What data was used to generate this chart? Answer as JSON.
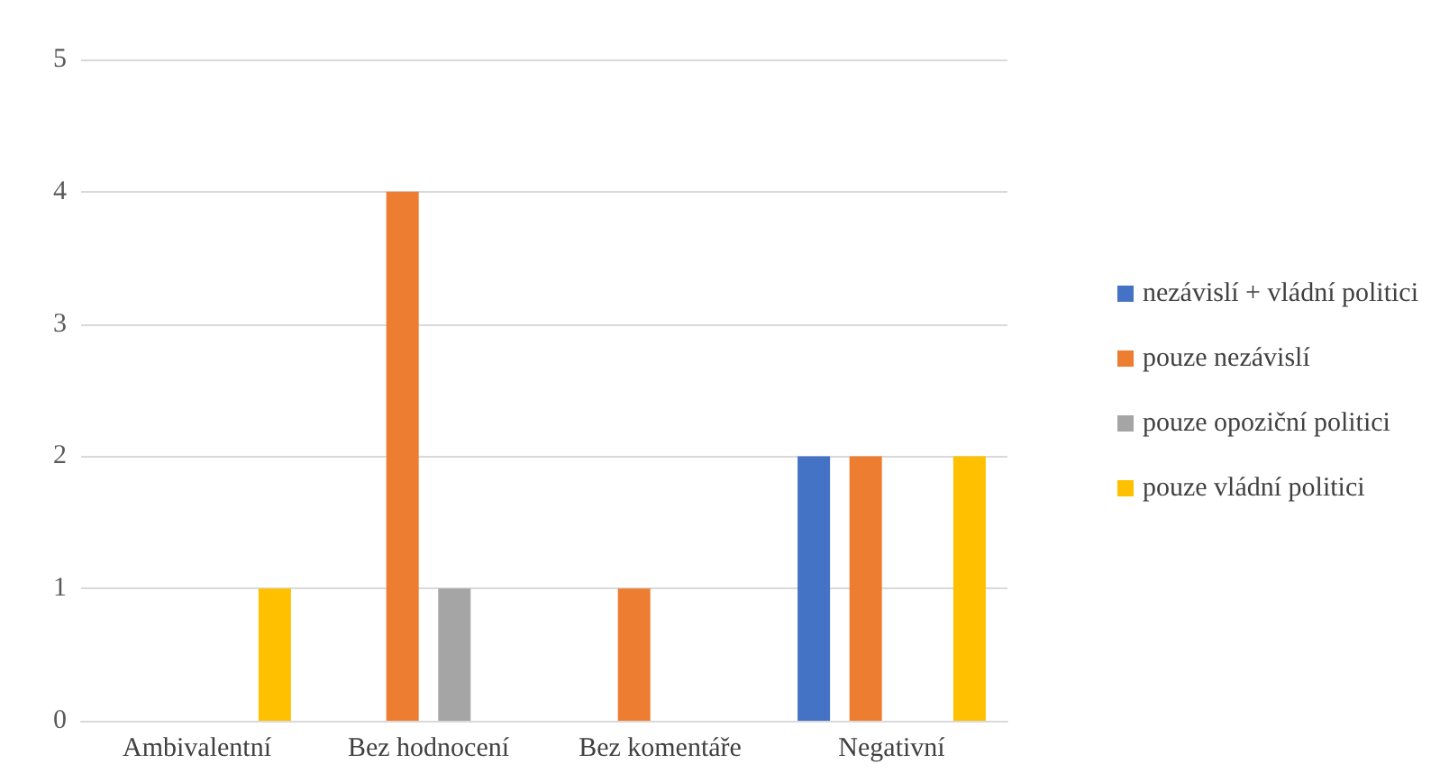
{
  "chart_data": {
    "type": "bar",
    "categories": [
      "Ambivalentní",
      "Bez hodnocení",
      "Bez komentáře",
      "Negativní"
    ],
    "series": [
      {
        "name": "nezávislí + vládní politici",
        "color": "#4472c4",
        "values": [
          0,
          0,
          0,
          2
        ]
      },
      {
        "name": "pouze nezávislí",
        "color": "#ed7d31",
        "values": [
          0,
          4,
          1,
          2
        ]
      },
      {
        "name": "pouze opoziční politici",
        "color": "#a5a5a5",
        "values": [
          0,
          1,
          0,
          0
        ]
      },
      {
        "name": "pouze vládní politici",
        "color": "#ffc000",
        "values": [
          1,
          0,
          0,
          2
        ]
      }
    ],
    "ylim": [
      0,
      5
    ],
    "yticks": [
      0,
      1,
      2,
      3,
      4,
      5
    ],
    "grid": "y",
    "legend": "right"
  }
}
